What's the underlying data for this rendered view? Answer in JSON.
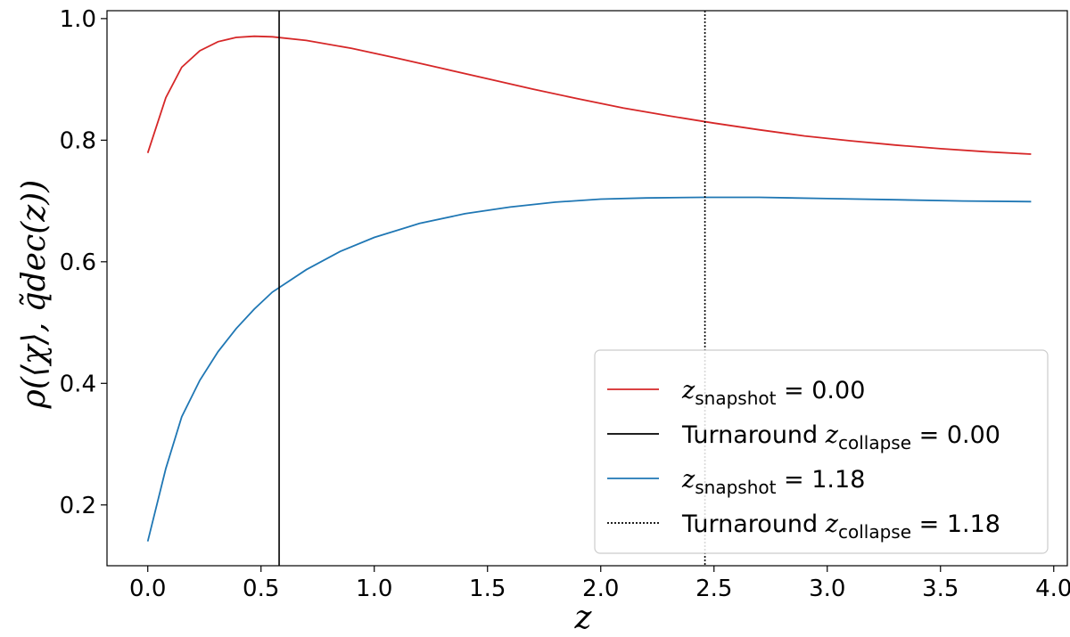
{
  "chart_data": {
    "type": "line",
    "xlabel": "z",
    "ylabel": "ρ(⟨χ⟩, q̃dec(z))",
    "xlim": [
      -0.18,
      4.06
    ],
    "ylim": [
      0.1,
      1.013
    ],
    "x_ticks": [
      "0.0",
      "0.5",
      "1.0",
      "1.5",
      "2.0",
      "2.5",
      "3.0",
      "3.5",
      "4.0"
    ],
    "y_ticks": [
      "0.2",
      "0.4",
      "0.6",
      "0.8",
      "1.0"
    ],
    "grid": false,
    "legend_position": "lower-right",
    "series": [
      {
        "name": "z_snapshot = 0.00",
        "color": "#d62728",
        "style": "solid",
        "x": [
          0.0,
          0.08,
          0.15,
          0.23,
          0.31,
          0.39,
          0.47,
          0.55,
          0.7,
          0.9,
          1.1,
          1.3,
          1.5,
          1.7,
          1.9,
          2.1,
          2.3,
          2.5,
          2.7,
          2.9,
          3.1,
          3.3,
          3.5,
          3.7,
          3.9
        ],
        "values": [
          0.779,
          0.87,
          0.92,
          0.947,
          0.962,
          0.969,
          0.971,
          0.97,
          0.964,
          0.951,
          0.935,
          0.918,
          0.901,
          0.884,
          0.868,
          0.853,
          0.84,
          0.828,
          0.817,
          0.807,
          0.799,
          0.792,
          0.786,
          0.781,
          0.777
        ]
      },
      {
        "name": "z_snapshot = 1.18",
        "color": "#1f77b4",
        "style": "solid",
        "x": [
          0.0,
          0.08,
          0.15,
          0.23,
          0.31,
          0.39,
          0.47,
          0.55,
          0.7,
          0.85,
          1.0,
          1.2,
          1.4,
          1.6,
          1.8,
          2.0,
          2.2,
          2.45,
          2.7,
          3.0,
          3.3,
          3.6,
          3.9
        ],
        "values": [
          0.14,
          0.26,
          0.345,
          0.405,
          0.452,
          0.49,
          0.522,
          0.55,
          0.587,
          0.617,
          0.64,
          0.663,
          0.679,
          0.69,
          0.698,
          0.703,
          0.705,
          0.706,
          0.706,
          0.704,
          0.702,
          0.7,
          0.699
        ]
      }
    ],
    "vlines": [
      {
        "name": "Turnaround z_collapse = 0.00",
        "x": 0.58,
        "color": "#000000",
        "style": "solid"
      },
      {
        "name": "Turnaround z_collapse = 1.18",
        "x": 2.46,
        "color": "#000000",
        "style": "dotted"
      }
    ],
    "legend": [
      {
        "prefix": "",
        "var": "z",
        "sub": "snapshot",
        "value": " = 0.00",
        "color": "#d62728",
        "style": "solid"
      },
      {
        "prefix": "Turnaround ",
        "var": "z",
        "sub": "collapse",
        "value": " = 0.00",
        "color": "#000000",
        "style": "solid"
      },
      {
        "prefix": "",
        "var": "z",
        "sub": "snapshot",
        "value": " = 1.18",
        "color": "#1f77b4",
        "style": "solid"
      },
      {
        "prefix": "Turnaround ",
        "var": "z",
        "sub": "collapse",
        "value": " = 1.18",
        "color": "#000000",
        "style": "dotted"
      }
    ]
  }
}
